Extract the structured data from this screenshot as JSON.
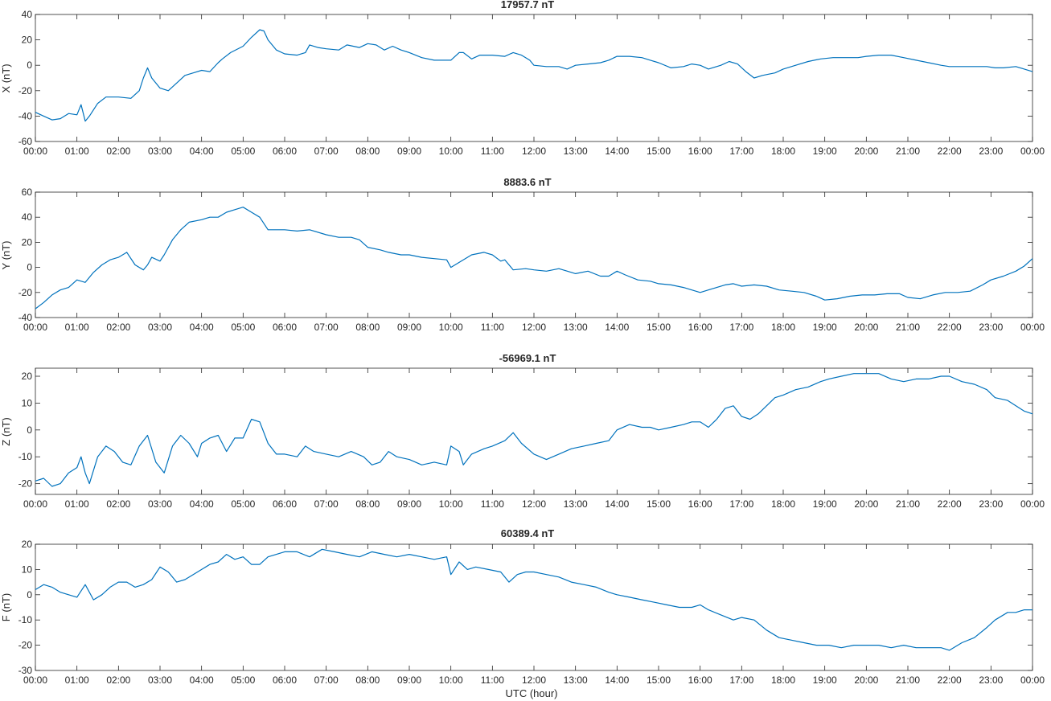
{
  "figure": {
    "xlabel": "UTC (hour)",
    "time_ticks": [
      "00:00",
      "01:00",
      "02:00",
      "03:00",
      "04:00",
      "05:00",
      "06:00",
      "07:00",
      "08:00",
      "09:00",
      "10:00",
      "11:00",
      "12:00",
      "13:00",
      "14:00",
      "15:00",
      "16:00",
      "17:00",
      "18:00",
      "19:00",
      "20:00",
      "21:00",
      "22:00",
      "23:00",
      "00:00"
    ],
    "line_color": "#0072bd"
  },
  "chart_data": [
    {
      "type": "line",
      "title": "17957.7 nT",
      "ylabel": "X (nT)",
      "ylim": [
        -60,
        40
      ],
      "yticks": [
        -60,
        -40,
        -20,
        0,
        20,
        40
      ],
      "x": [
        0,
        0.2,
        0.4,
        0.6,
        0.8,
        1.0,
        1.1,
        1.2,
        1.3,
        1.5,
        1.7,
        2.0,
        2.3,
        2.5,
        2.6,
        2.7,
        2.8,
        3.0,
        3.2,
        3.4,
        3.6,
        3.8,
        4.0,
        4.2,
        4.4,
        4.5,
        4.7,
        5.0,
        5.2,
        5.4,
        5.5,
        5.6,
        5.8,
        6.0,
        6.3,
        6.5,
        6.6,
        6.8,
        7.0,
        7.3,
        7.5,
        7.8,
        8.0,
        8.2,
        8.4,
        8.6,
        8.8,
        9.0,
        9.3,
        9.6,
        9.8,
        10.0,
        10.2,
        10.3,
        10.5,
        10.7,
        11.0,
        11.3,
        11.5,
        11.7,
        11.9,
        12.0,
        12.3,
        12.6,
        12.8,
        13.0,
        13.3,
        13.6,
        13.8,
        14.0,
        14.3,
        14.6,
        14.8,
        15.0,
        15.3,
        15.6,
        15.8,
        16.0,
        16.2,
        16.5,
        16.7,
        16.9,
        17.1,
        17.3,
        17.5,
        17.8,
        18.0,
        18.3,
        18.6,
        18.9,
        19.2,
        19.5,
        19.8,
        20.0,
        20.3,
        20.6,
        20.9,
        21.2,
        21.5,
        21.8,
        22.0,
        22.3,
        22.6,
        22.9,
        23.1,
        23.3,
        23.6,
        23.8,
        24.0
      ],
      "values": [
        -37,
        -40,
        -43,
        -42,
        -38,
        -39,
        -31,
        -44,
        -40,
        -30,
        -25,
        -25,
        -26,
        -20,
        -10,
        -2,
        -10,
        -18,
        -20,
        -14,
        -8,
        -6,
        -4,
        -5,
        2,
        5,
        10,
        15,
        22,
        28,
        27,
        20,
        12,
        9,
        8,
        10,
        16,
        14,
        13,
        12,
        16,
        14,
        17,
        16,
        12,
        15,
        12,
        10,
        6,
        4,
        4,
        4,
        10,
        10,
        5,
        8,
        8,
        7,
        10,
        8,
        4,
        0,
        -1,
        -1,
        -3,
        0,
        1,
        2,
        4,
        7,
        7,
        6,
        4,
        2,
        -2,
        -1,
        1,
        0,
        -3,
        0,
        3,
        1,
        -5,
        -10,
        -8,
        -6,
        -3,
        0,
        3,
        5,
        6,
        6,
        6,
        7,
        8,
        8,
        6,
        4,
        2,
        0,
        -1,
        -1,
        -1,
        -1,
        -2,
        -2,
        -1,
        -3,
        -5
      ]
    },
    {
      "type": "line",
      "title": "8883.6 nT",
      "ylabel": "Y (nT)",
      "ylim": [
        -40,
        60
      ],
      "yticks": [
        -40,
        -20,
        0,
        20,
        40,
        60
      ],
      "x": [
        0,
        0.2,
        0.4,
        0.6,
        0.8,
        1.0,
        1.2,
        1.4,
        1.6,
        1.8,
        2.0,
        2.2,
        2.4,
        2.6,
        2.7,
        2.8,
        3.0,
        3.1,
        3.3,
        3.5,
        3.7,
        4.0,
        4.2,
        4.4,
        4.6,
        4.8,
        5.0,
        5.2,
        5.4,
        5.6,
        5.8,
        6.0,
        6.3,
        6.6,
        7.0,
        7.3,
        7.6,
        7.8,
        8.0,
        8.3,
        8.5,
        8.8,
        9.0,
        9.3,
        9.6,
        9.9,
        10.0,
        10.2,
        10.5,
        10.8,
        11.0,
        11.2,
        11.3,
        11.5,
        11.8,
        12.0,
        12.3,
        12.6,
        12.9,
        13.0,
        13.3,
        13.6,
        13.8,
        14.0,
        14.2,
        14.5,
        14.8,
        15.0,
        15.3,
        15.6,
        15.8,
        16.0,
        16.3,
        16.6,
        16.8,
        17.0,
        17.3,
        17.6,
        17.9,
        18.2,
        18.5,
        18.8,
        19.0,
        19.3,
        19.6,
        19.9,
        20.2,
        20.5,
        20.8,
        21.0,
        21.3,
        21.6,
        21.9,
        22.2,
        22.5,
        22.8,
        23.0,
        23.3,
        23.6,
        23.8,
        24.0
      ],
      "values": [
        -33,
        -28,
        -22,
        -18,
        -16,
        -10,
        -12,
        -4,
        2,
        6,
        8,
        12,
        2,
        -2,
        2,
        8,
        5,
        10,
        22,
        30,
        36,
        38,
        40,
        40,
        44,
        46,
        48,
        44,
        40,
        30,
        30,
        30,
        29,
        30,
        26,
        24,
        24,
        22,
        16,
        14,
        12,
        10,
        10,
        8,
        7,
        6,
        0,
        4,
        10,
        12,
        10,
        5,
        6,
        -2,
        -1,
        -2,
        -3,
        -1,
        -4,
        -5,
        -3,
        -7,
        -7,
        -3,
        -6,
        -10,
        -11,
        -13,
        -14,
        -16,
        -18,
        -20,
        -17,
        -14,
        -13,
        -15,
        -14,
        -15,
        -18,
        -19,
        -20,
        -23,
        -26,
        -25,
        -23,
        -22,
        -22,
        -21,
        -21,
        -24,
        -25,
        -22,
        -20,
        -20,
        -19,
        -14,
        -10,
        -7,
        -3,
        1,
        7
      ]
    },
    {
      "type": "line",
      "title": "-56969.1 nT",
      "ylabel": "Z (nT)",
      "ylim": [
        -24,
        23
      ],
      "yticks": [
        -20,
        -10,
        0,
        10,
        20
      ],
      "x": [
        0,
        0.2,
        0.4,
        0.6,
        0.8,
        1.0,
        1.1,
        1.2,
        1.3,
        1.5,
        1.7,
        1.9,
        2.1,
        2.3,
        2.5,
        2.7,
        2.9,
        3.1,
        3.3,
        3.5,
        3.7,
        3.9,
        4.0,
        4.2,
        4.4,
        4.6,
        4.8,
        5.0,
        5.2,
        5.4,
        5.6,
        5.8,
        6.0,
        6.3,
        6.5,
        6.7,
        7.0,
        7.3,
        7.6,
        7.9,
        8.1,
        8.3,
        8.5,
        8.7,
        9.0,
        9.3,
        9.6,
        9.9,
        10.0,
        10.2,
        10.3,
        10.5,
        10.8,
        11.0,
        11.3,
        11.5,
        11.7,
        12.0,
        12.3,
        12.6,
        12.9,
        13.2,
        13.5,
        13.8,
        14.0,
        14.3,
        14.6,
        14.8,
        15.0,
        15.3,
        15.6,
        15.8,
        16.0,
        16.2,
        16.4,
        16.6,
        16.8,
        17.0,
        17.2,
        17.4,
        17.6,
        17.8,
        18.0,
        18.3,
        18.6,
        18.9,
        19.1,
        19.4,
        19.7,
        20.0,
        20.3,
        20.6,
        20.9,
        21.2,
        21.5,
        21.8,
        22.0,
        22.3,
        22.6,
        22.9,
        23.1,
        23.4,
        23.6,
        23.8,
        24.0
      ],
      "values": [
        -19,
        -18,
        -21,
        -20,
        -16,
        -14,
        -10,
        -16,
        -20,
        -10,
        -6,
        -8,
        -12,
        -13,
        -6,
        -2,
        -12,
        -16,
        -6,
        -2,
        -5,
        -10,
        -5,
        -3,
        -2,
        -8,
        -3,
        -3,
        4,
        3,
        -5,
        -9,
        -9,
        -10,
        -6,
        -8,
        -9,
        -10,
        -8,
        -10,
        -13,
        -12,
        -8,
        -10,
        -11,
        -13,
        -12,
        -13,
        -6,
        -8,
        -13,
        -9,
        -7,
        -6,
        -4,
        -1,
        -5,
        -9,
        -11,
        -9,
        -7,
        -6,
        -5,
        -4,
        0,
        2,
        1,
        1,
        0,
        1,
        2,
        3,
        3,
        1,
        4,
        8,
        9,
        5,
        4,
        6,
        9,
        12,
        13,
        15,
        16,
        18,
        19,
        20,
        21,
        21,
        21,
        19,
        18,
        19,
        19,
        20,
        20,
        18,
        17,
        15,
        12,
        11,
        9,
        7,
        6
      ]
    },
    {
      "type": "line",
      "title": "60389.4 nT",
      "ylabel": "F (nT)",
      "ylim": [
        -30,
        20
      ],
      "yticks": [
        -30,
        -20,
        -10,
        0,
        10,
        20
      ],
      "x": [
        0,
        0.2,
        0.4,
        0.6,
        0.8,
        1.0,
        1.2,
        1.4,
        1.6,
        1.8,
        2.0,
        2.2,
        2.4,
        2.6,
        2.8,
        3.0,
        3.2,
        3.4,
        3.6,
        3.8,
        4.0,
        4.2,
        4.4,
        4.6,
        4.8,
        5.0,
        5.2,
        5.4,
        5.6,
        5.8,
        6.0,
        6.3,
        6.6,
        6.9,
        7.2,
        7.5,
        7.8,
        8.1,
        8.4,
        8.7,
        9.0,
        9.3,
        9.6,
        9.9,
        10.0,
        10.2,
        10.4,
        10.6,
        10.9,
        11.2,
        11.4,
        11.6,
        11.8,
        12.0,
        12.3,
        12.6,
        12.9,
        13.2,
        13.5,
        13.8,
        14.0,
        14.3,
        14.6,
        14.9,
        15.2,
        15.5,
        15.8,
        16.0,
        16.2,
        16.5,
        16.8,
        17.0,
        17.3,
        17.6,
        17.9,
        18.2,
        18.5,
        18.8,
        19.1,
        19.4,
        19.7,
        20.0,
        20.3,
        20.6,
        20.9,
        21.2,
        21.5,
        21.8,
        22.0,
        22.3,
        22.6,
        22.9,
        23.1,
        23.4,
        23.6,
        23.8,
        24.0
      ],
      "values": [
        2,
        4,
        3,
        1,
        0,
        -1,
        4,
        -2,
        0,
        3,
        5,
        5,
        3,
        4,
        6,
        11,
        9,
        5,
        6,
        8,
        10,
        12,
        13,
        16,
        14,
        15,
        12,
        12,
        15,
        16,
        17,
        17,
        15,
        18,
        17,
        16,
        15,
        17,
        16,
        15,
        16,
        15,
        14,
        15,
        8,
        13,
        10,
        11,
        10,
        9,
        5,
        8,
        9,
        9,
        8,
        7,
        5,
        4,
        3,
        1,
        0,
        -1,
        -2,
        -3,
        -4,
        -5,
        -5,
        -4,
        -6,
        -8,
        -10,
        -9,
        -10,
        -14,
        -17,
        -18,
        -19,
        -20,
        -20,
        -21,
        -20,
        -20,
        -20,
        -21,
        -20,
        -21,
        -21,
        -21,
        -22,
        -19,
        -17,
        -13,
        -10,
        -7,
        -7,
        -6,
        -6
      ]
    }
  ]
}
